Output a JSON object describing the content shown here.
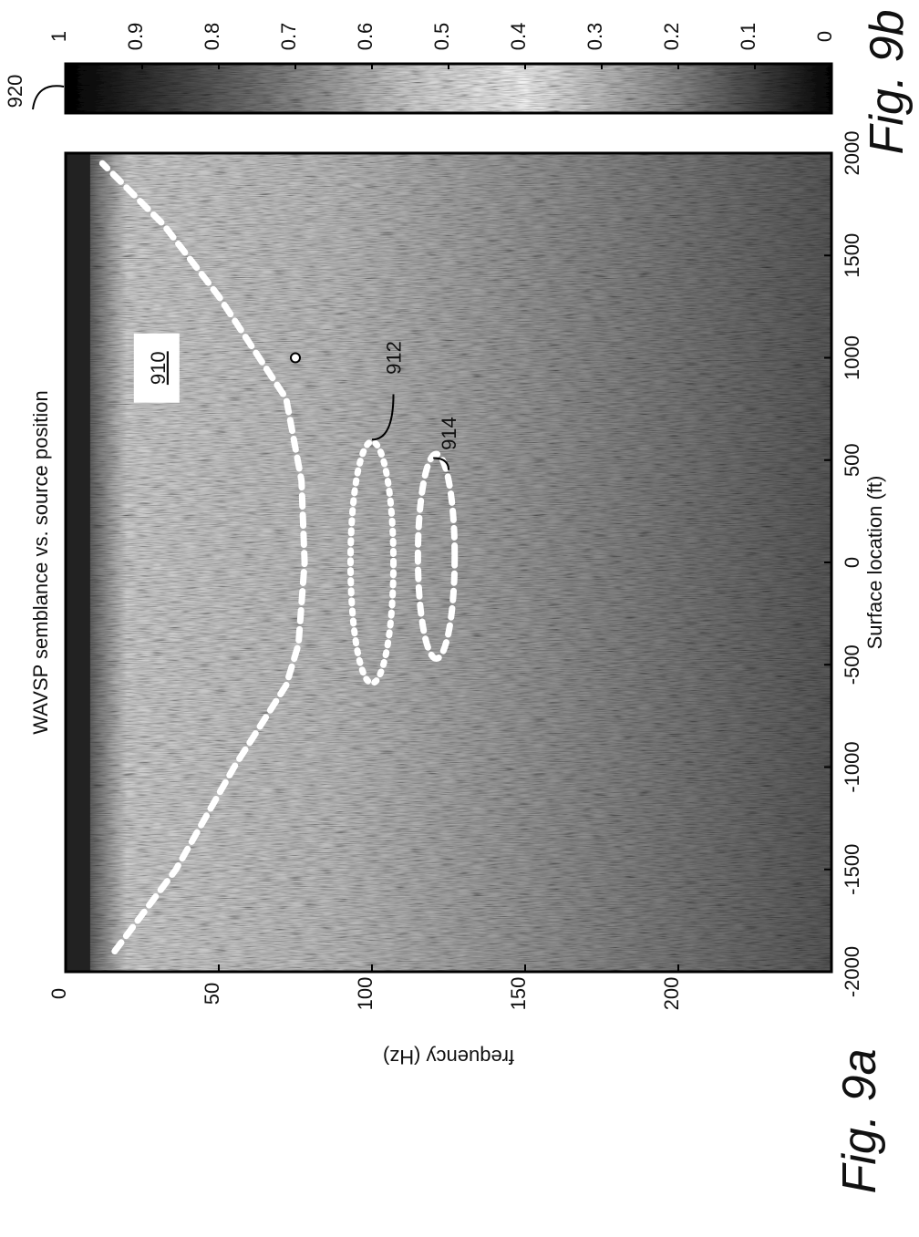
{
  "chart_data": [
    {
      "type": "heatmap",
      "title": "WAVSP semblance vs. source position",
      "xlabel": "Surface location (ft)",
      "ylabel": "frequency (Hz)",
      "xlim": [
        -2000,
        2000
      ],
      "ylim": [
        0,
        250
      ],
      "y_reversed": true,
      "xticks": [
        "-2000",
        "-1500",
        "-1000",
        "-500",
        "0",
        "500",
        "1000",
        "1500",
        "2000"
      ],
      "xtick_values": [
        -2000,
        -1500,
        -1000,
        -500,
        0,
        500,
        1000,
        1500,
        2000
      ],
      "yticks": [
        "0",
        "50",
        "100",
        "150",
        "200"
      ],
      "ytick_values": [
        0,
        50,
        100,
        150,
        200
      ],
      "colormap": "grayscale",
      "value_range": [
        0,
        1
      ],
      "rotation": "page rotated 90 degrees counter-clockwise",
      "features": [
        {
          "label": "910",
          "label_underlined": true,
          "label_position": [
            950,
            30
          ],
          "shape": "dashed curve",
          "points": [
            [
              -1900,
              16
            ],
            [
              -1500,
              36
            ],
            [
              -1000,
              55
            ],
            [
              -600,
              72
            ],
            [
              -400,
              76
            ],
            [
              0,
              78
            ],
            [
              400,
              77
            ],
            [
              800,
              72
            ],
            [
              1300,
              50
            ],
            [
              1650,
              32
            ],
            [
              1950,
              12
            ]
          ]
        },
        {
          "label": "912",
          "label_position": [
            1000,
            107
          ],
          "leader_to": [
            600,
            100
          ],
          "shape": "dotted ellipse",
          "center": [
            0,
            100
          ],
          "semi_axes": [
            590,
            7
          ]
        },
        {
          "label": "914",
          "label_position": [
            630,
            125
          ],
          "leader_to": [
            510,
            120
          ],
          "shape": "dashed ellipse",
          "center": [
            30,
            121
          ],
          "semi_axes": [
            500,
            6
          ]
        },
        {
          "label": "",
          "shape": "small circle",
          "center": [
            1000,
            75
          ]
        }
      ],
      "figure_label": "Fig. 9a"
    },
    {
      "type": "heatmap",
      "title": "",
      "colorbar": true,
      "colormap": "grayscale",
      "ticks": [
        "0",
        "0.1",
        "0.2",
        "0.3",
        "0.4",
        "0.5",
        "0.6",
        "0.7",
        "0.8",
        "0.9",
        "1"
      ],
      "tick_values": [
        0,
        0.1,
        0.2,
        0.3,
        0.4,
        0.5,
        0.6,
        0.7,
        0.8,
        0.9,
        1
      ],
      "reference_numeral": "920",
      "figure_label": "Fig. 9b"
    }
  ]
}
